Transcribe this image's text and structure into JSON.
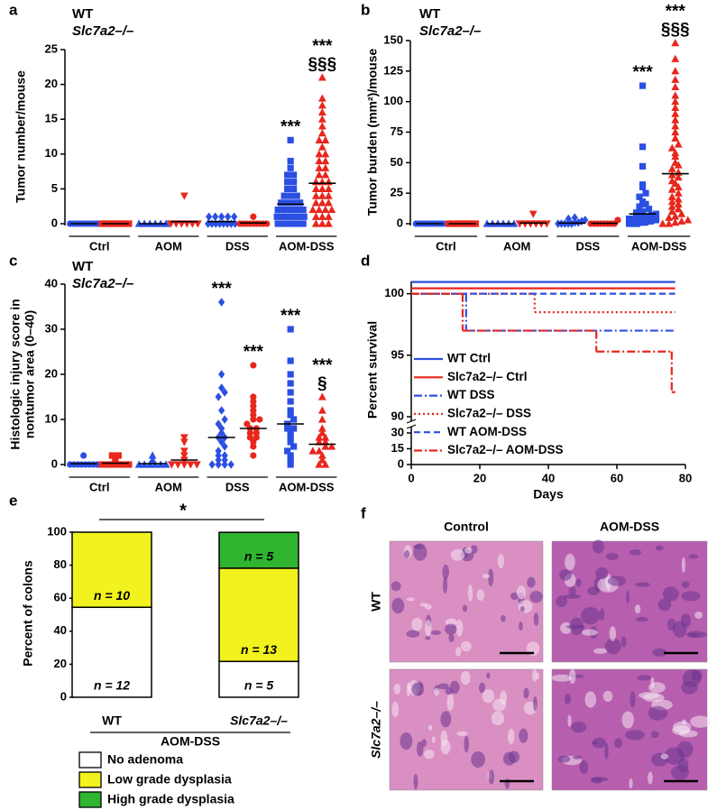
{
  "chart_data": [
    {
      "type": "dot",
      "panel": "a",
      "ylabel": "Tumor number/mouse",
      "ylim": [
        0,
        25
      ],
      "yticks": [
        0,
        5,
        10,
        15,
        20,
        25
      ],
      "categories": [
        "Ctrl",
        "AOM",
        "DSS",
        "AOM-DSS"
      ],
      "series": [
        {
          "name": "WT",
          "color": "#2b4fe3",
          "markers": [
            "circle",
            "triangle",
            "diamond",
            "square"
          ],
          "values": [
            [
              0,
              0,
              0,
              0,
              0,
              0,
              0,
              0,
              0,
              0
            ],
            [
              0,
              0,
              0,
              0,
              0,
              0
            ],
            [
              0,
              0,
              0,
              0,
              0,
              0,
              0,
              0,
              1,
              1,
              1,
              1,
              1
            ],
            [
              0,
              0,
              0,
              0,
              0,
              1,
              1,
              1,
              1,
              1,
              1,
              1,
              2,
              2,
              2,
              2,
              2,
              3,
              3,
              3,
              3,
              4,
              4,
              4,
              5,
              5,
              6,
              6,
              7,
              7,
              8,
              9,
              12
            ]
          ],
          "means": [
            0,
            0,
            0.3,
            2.8
          ],
          "annotations": [
            null,
            null,
            null,
            [
              "***"
            ]
          ]
        },
        {
          "name": "Slc7a2–/–",
          "color": "#e8261c",
          "markers": [
            "square",
            "triangle-down",
            "circle",
            "triangle"
          ],
          "values": [
            [
              0,
              0,
              0,
              0,
              0,
              0,
              0,
              0,
              0,
              0
            ],
            [
              0,
              0,
              0,
              0,
              0,
              0,
              4
            ],
            [
              0,
              0,
              0,
              0,
              0,
              0,
              0,
              0,
              0,
              1
            ],
            [
              0,
              0,
              0,
              1,
              1,
              1,
              2,
              2,
              2,
              2,
              3,
              3,
              3,
              4,
              4,
              4,
              5,
              5,
              5,
              6,
              6,
              6,
              7,
              7,
              8,
              8,
              9,
              9,
              10,
              10,
              11,
              12,
              12,
              13,
              14,
              15,
              16,
              17,
              18,
              21
            ]
          ],
          "means": [
            0,
            0.3,
            0.1,
            5.8
          ],
          "annotations": [
            null,
            null,
            null,
            [
              "***",
              "§§§"
            ]
          ]
        }
      ]
    },
    {
      "type": "dot",
      "panel": "b",
      "ylabel": "Tumor burden (mm²)/mouse",
      "ylim": [
        0,
        150
      ],
      "yticks": [
        0,
        25,
        50,
        75,
        100,
        125,
        150
      ],
      "categories": [
        "Ctrl",
        "AOM",
        "DSS",
        "AOM-DSS"
      ],
      "series": [
        {
          "name": "WT",
          "color": "#2b4fe3",
          "markers": [
            "circle",
            "triangle",
            "diamond",
            "square"
          ],
          "values": [
            [
              0,
              0,
              0,
              0,
              0,
              0,
              0,
              0,
              0,
              0
            ],
            [
              0,
              0,
              0,
              0,
              0,
              0
            ],
            [
              0,
              0,
              0,
              0,
              0,
              1,
              1,
              2,
              3,
              4,
              5
            ],
            [
              0,
              0,
              0,
              0,
              1,
              1,
              1,
              2,
              2,
              3,
              3,
              4,
              4,
              5,
              5,
              6,
              7,
              8,
              9,
              10,
              12,
              14,
              16,
              18,
              22,
              25,
              30,
              32,
              47,
              63,
              113
            ]
          ],
          "means": [
            0,
            0,
            0.5,
            8
          ],
          "annotations": [
            null,
            null,
            null,
            [
              "***"
            ]
          ]
        },
        {
          "name": "Slc7a2–/–",
          "color": "#e8261c",
          "markers": [
            "square",
            "triangle-down",
            "circle",
            "triangle"
          ],
          "values": [
            [
              0,
              0,
              0,
              0,
              0,
              0,
              0,
              0,
              0,
              0
            ],
            [
              0,
              0,
              0,
              0,
              0,
              0,
              8
            ],
            [
              0,
              0,
              0,
              0,
              0,
              0,
              0,
              0,
              3
            ],
            [
              0,
              0,
              1,
              2,
              3,
              5,
              6,
              8,
              10,
              12,
              14,
              16,
              18,
              20,
              22,
              25,
              28,
              30,
              33,
              35,
              38,
              40,
              42,
              45,
              48,
              50,
              55,
              58,
              62,
              65,
              70,
              75,
              80,
              85,
              90,
              95,
              100,
              105,
              112,
              118,
              125,
              135,
              148
            ]
          ],
          "means": [
            0,
            0.5,
            0.3,
            41
          ],
          "annotations": [
            null,
            null,
            null,
            [
              "***",
              "§§§"
            ]
          ]
        }
      ]
    },
    {
      "type": "dot",
      "panel": "c",
      "ylabel": [
        "Histologic injury score in",
        "nontumor area (0–40)"
      ],
      "ylim": [
        0,
        40
      ],
      "yticks": [
        0,
        10,
        20,
        30,
        40
      ],
      "categories": [
        "Ctrl",
        "AOM",
        "DSS",
        "AOM-DSS"
      ],
      "series": [
        {
          "name": "WT",
          "color": "#2b4fe3",
          "markers": [
            "circle",
            "triangle",
            "diamond",
            "square"
          ],
          "values": [
            [
              0,
              0,
              0,
              0,
              0,
              0,
              0,
              0,
              2
            ],
            [
              0,
              0,
              0,
              0,
              0,
              0,
              1,
              2
            ],
            [
              0,
              0,
              0,
              0,
              1,
              1,
              2,
              2,
              3,
              4,
              5,
              6,
              6,
              7,
              8,
              9,
              10,
              12,
              15,
              16,
              17,
              20,
              36
            ],
            [
              0,
              1,
              2,
              3,
              4,
              5,
              6,
              7,
              8,
              8,
              9,
              10,
              11,
              12,
              14,
              16,
              18,
              20,
              23,
              30
            ]
          ],
          "means": [
            0.2,
            0.2,
            6,
            9
          ],
          "annotations": [
            null,
            null,
            [
              "***"
            ],
            [
              "***"
            ]
          ]
        },
        {
          "name": "Slc7a2–/–",
          "color": "#e8261c",
          "markers": [
            "square",
            "triangle-down",
            "circle",
            "triangle"
          ],
          "values": [
            [
              0,
              0,
              0,
              0,
              0,
              0,
              1,
              2,
              2
            ],
            [
              0,
              0,
              0,
              0,
              0,
              1,
              2,
              3,
              5,
              6
            ],
            [
              2,
              4,
              5,
              6,
              6,
              7,
              7,
              8,
              8,
              9,
              10,
              10,
              11,
              12,
              13,
              14,
              15,
              22
            ],
            [
              0,
              0,
              1,
              2,
              3,
              3,
              4,
              4,
              5,
              5,
              6,
              6,
              7,
              8,
              10,
              12,
              15
            ]
          ],
          "means": [
            0.3,
            1,
            8,
            4.5
          ],
          "annotations": [
            null,
            null,
            [
              "***"
            ],
            [
              "***",
              "§"
            ]
          ]
        }
      ]
    },
    {
      "type": "survival",
      "panel": "d",
      "ylabel": "Percent survival",
      "xlabel": "Days",
      "xlim": [
        0,
        80
      ],
      "xticks": [
        0,
        20,
        40,
        60,
        80
      ],
      "ylim": [
        0,
        101
      ],
      "ybreak": [
        30,
        90
      ],
      "yticks": [
        0,
        15,
        30,
        90,
        95,
        100
      ],
      "series": [
        {
          "name": "WT Ctrl",
          "color": "#2b4fe3",
          "dash": "solid",
          "x": [
            0,
            77
          ],
          "values": [
            100,
            100
          ]
        },
        {
          "name": "Slc7a2–/– Ctrl",
          "color": "#e8261c",
          "dash": "solid",
          "x": [
            0,
            77
          ],
          "values": [
            100,
            100
          ]
        },
        {
          "name": "WT DSS",
          "color": "#2b4fe3",
          "dash": "dashdot",
          "x": [
            0,
            16,
            77
          ],
          "values": [
            100,
            97,
            97
          ]
        },
        {
          "name": "Slc7a2–/– DSS",
          "color": "#e8261c",
          "dash": "dot",
          "x": [
            0,
            36,
            77
          ],
          "values": [
            100,
            98.5,
            98.5
          ]
        },
        {
          "name": "WT AOM-DSS",
          "color": "#2b4fe3",
          "dash": "dash",
          "x": [
            0,
            77
          ],
          "values": [
            100,
            100
          ]
        },
        {
          "name": "Slc7a2–/– AOM-DSS",
          "color": "#e8261c",
          "dash": "dashdot",
          "x": [
            0,
            15,
            54,
            76,
            77
          ],
          "values": [
            100,
            97,
            95.3,
            92,
            92
          ]
        }
      ]
    },
    {
      "type": "stacked_bar",
      "panel": "e",
      "ylabel": "Percent of colons",
      "group_label": "AOM-DSS",
      "significance": "*",
      "categories": [
        "WT",
        "Slc7a2–/–"
      ],
      "ylim": [
        0,
        100
      ],
      "yticks": [
        0,
        20,
        40,
        60,
        80,
        100
      ],
      "series": [
        {
          "name": "No adenoma",
          "color": "#ffffff",
          "values": [
            54.5,
            21.7
          ],
          "labels": [
            "n = 12",
            "n = 5"
          ]
        },
        {
          "name": "Low grade dysplasia",
          "color": "#f2f21e",
          "values": [
            45.5,
            56.5
          ],
          "labels": [
            "n = 10",
            "n = 13"
          ]
        },
        {
          "name": "High grade dysplasia",
          "color": "#2fb52f",
          "values": [
            0,
            21.7
          ],
          "labels": [
            null,
            "n = 5"
          ]
        }
      ]
    }
  ],
  "panel_f": {
    "label": "f",
    "columns": [
      "Control",
      "AOM-DSS"
    ],
    "rows": [
      "WT",
      "Slc7a2–/–"
    ]
  }
}
